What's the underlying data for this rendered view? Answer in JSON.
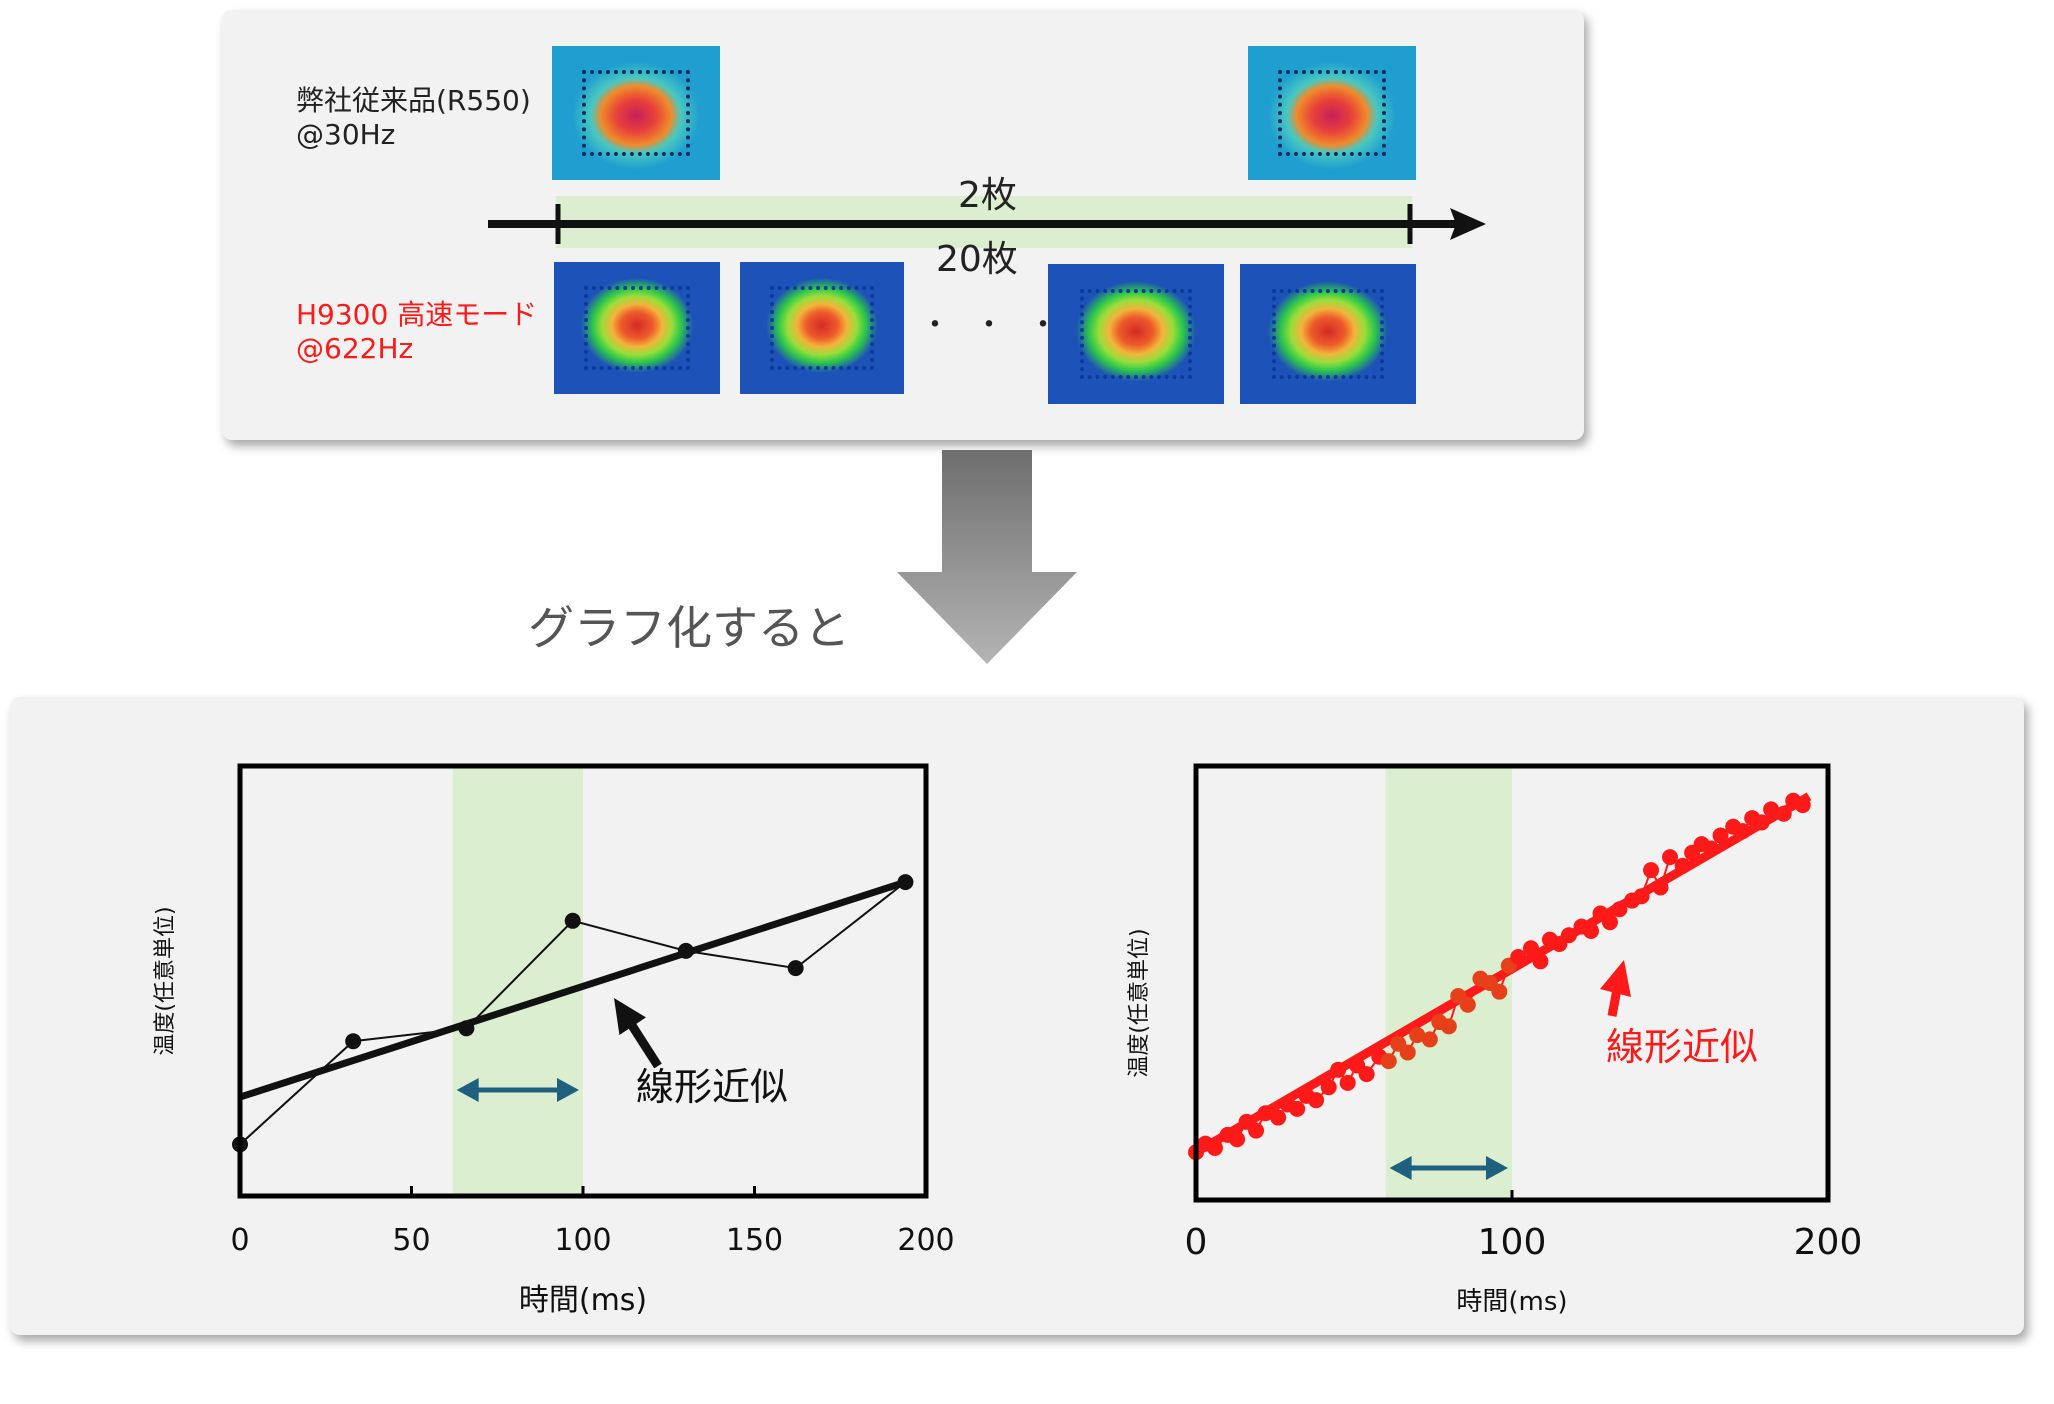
{
  "top": {
    "conventional": {
      "name": "弊社従来品(R550)",
      "rate": "@30Hz"
    },
    "highspeed": {
      "name": "H9300 高速モード",
      "rate": "@622Hz"
    },
    "frames_conventional": "2枚",
    "frames_highspeed": "20枚",
    "ellipsis": "・・・"
  },
  "caption": "グラフ化すると",
  "colors": {
    "highlight_band": "#dbefd0",
    "interval_arrow": "#1f5f7f",
    "red_series": "#ff1a1a",
    "orange_series": "#e6401a",
    "black_series": "#111111",
    "highspeed_label": "#ff1a1a"
  },
  "chart_data": [
    {
      "type": "line",
      "xlabel": "時間(ms)",
      "ylabel": "温度(任意単位)",
      "xlim": [
        0,
        200
      ],
      "xticks": [
        "0",
        "50",
        "100",
        "150",
        "200"
      ],
      "highlight_x": [
        62,
        100
      ],
      "fit_label": "線形近似",
      "series": [
        {
          "x": [
            0,
            33,
            66,
            97,
            130,
            162,
            194
          ],
          "y": [
            0.12,
            0.36,
            0.39,
            0.64,
            0.57,
            0.53,
            0.73
          ]
        }
      ],
      "fit": {
        "x": [
          0,
          194
        ],
        "y": [
          0.23,
          0.73
        ]
      }
    },
    {
      "type": "line",
      "xlabel": "時間(ms)",
      "ylabel": "温度(任意単位)",
      "xlim": [
        0,
        200
      ],
      "xticks": [
        "0",
        "100",
        "200"
      ],
      "highlight_x": [
        60,
        100
      ],
      "fit_label": "線形近似",
      "series": [
        {
          "x": [
            0,
            3,
            6,
            10,
            13,
            16,
            19,
            22,
            26,
            29,
            32,
            35,
            38,
            42,
            45,
            48,
            51,
            54,
            58,
            61,
            64,
            67,
            70,
            74,
            77,
            80,
            83,
            86,
            90,
            93,
            96,
            99,
            102,
            106,
            109,
            112,
            115,
            118,
            122,
            125,
            128,
            131,
            134,
            138,
            141,
            144,
            147,
            150,
            154,
            157,
            160,
            163,
            166,
            170,
            173,
            176,
            179,
            182,
            186,
            189,
            192
          ],
          "y": [
            0.11,
            0.13,
            0.12,
            0.15,
            0.14,
            0.18,
            0.16,
            0.2,
            0.19,
            0.22,
            0.21,
            0.24,
            0.23,
            0.26,
            0.3,
            0.27,
            0.31,
            0.29,
            0.33,
            0.32,
            0.36,
            0.34,
            0.38,
            0.37,
            0.41,
            0.4,
            0.47,
            0.45,
            0.51,
            0.5,
            0.48,
            0.54,
            0.56,
            0.58,
            0.55,
            0.6,
            0.59,
            0.61,
            0.63,
            0.62,
            0.66,
            0.64,
            0.67,
            0.69,
            0.7,
            0.76,
            0.72,
            0.79,
            0.77,
            0.8,
            0.82,
            0.81,
            0.84,
            0.86,
            0.85,
            0.88,
            0.87,
            0.9,
            0.89,
            0.92,
            0.91
          ]
        }
      ],
      "fit": {
        "x": [
          0,
          194
        ],
        "y": [
          0.11,
          0.93
        ]
      }
    }
  ]
}
